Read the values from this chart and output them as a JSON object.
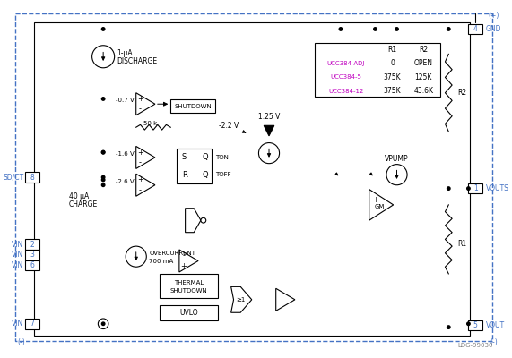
{
  "bg": "#ffffff",
  "lc": "#000000",
  "bc": "#4472c4",
  "gc": "#808080",
  "mc": "#c000c0",
  "figsize": [
    5.71,
    4.0
  ],
  "dpi": 100,
  "watermark": "LDG-99030",
  "table_rows": [
    [
      "UCC384-ADJ",
      "0",
      "OPEN"
    ],
    [
      "UCC384-5",
      "375K",
      "125K"
    ],
    [
      "UCC384-12",
      "375K",
      "43.6K"
    ]
  ]
}
